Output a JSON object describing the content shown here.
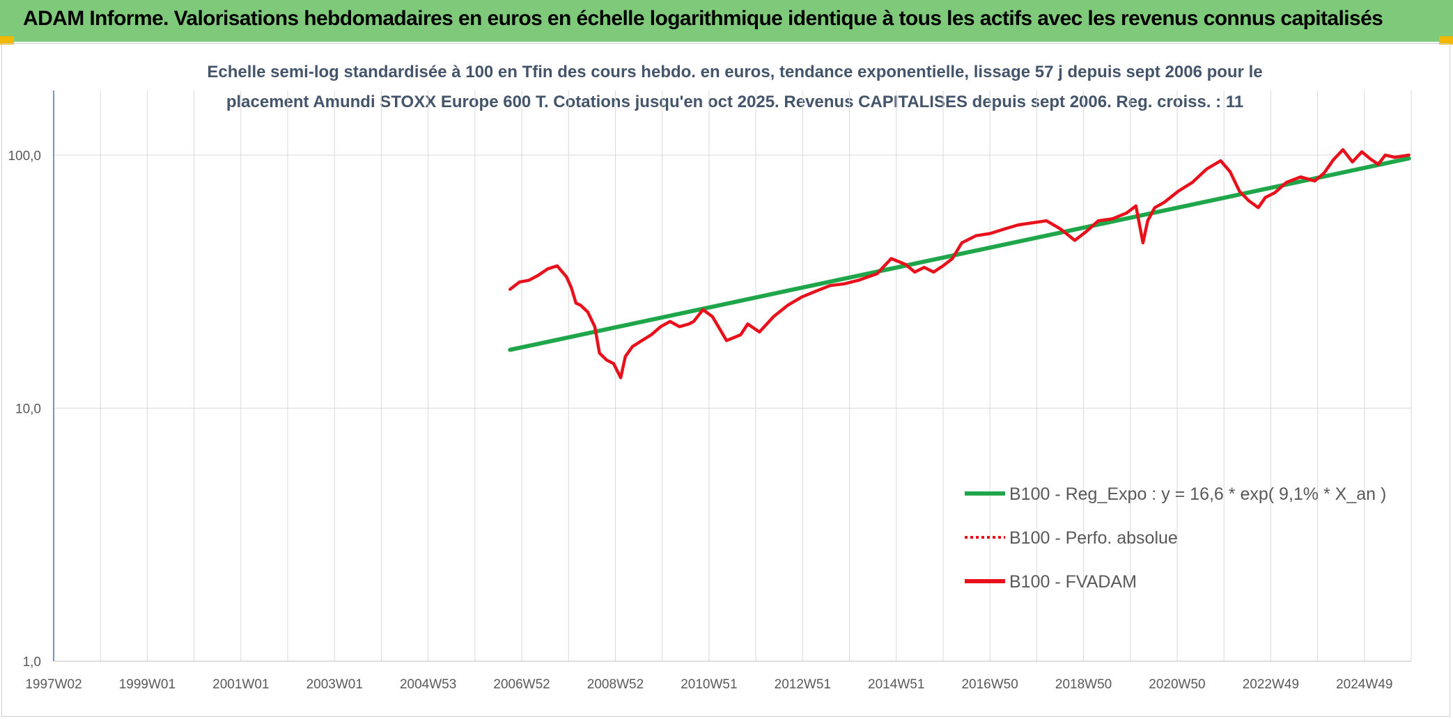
{
  "header": {
    "title": "ADAM Informe. Valorisations hebdomadaires en euros en échelle logarithmique identique à tous les actifs avec les revenus connus capitalisés"
  },
  "colors": {
    "banner": "#7fc97a",
    "regression": "#1fa64a",
    "series": "#e8101a",
    "axis": "#4472c4",
    "grid": "#d9d9d9",
    "subtitle": "#44546a"
  },
  "chart_data": {
    "type": "line",
    "title_line1": "Echelle semi-log standardisée à 100 en Tfin des cours hebdo. en euros, tendance exponentielle, lissage 57 j depuis sept 2006 pour le",
    "title_line2": "placement Amundi STOXX Europe 600 T. Cotations jusqu'en oct 2025. Revenus CAPITALISES depuis sept 2006. Reg. croiss. : 11",
    "y_scale": "log",
    "ylim": [
      1,
      180
    ],
    "y_ticks": [
      "100,0",
      "10,0",
      "1,0"
    ],
    "x_ticks": [
      "1997W02",
      "1999W01",
      "2001W01",
      "2003W01",
      "2004W53",
      "2006W52",
      "2008W52",
      "2010W51",
      "2012W51",
      "2014W51",
      "2016W50",
      "2018W50",
      "2020W50",
      "2022W49",
      "2024W49"
    ],
    "x_range": [
      1997.0,
      2025.85
    ],
    "grid": true,
    "legend_position": "bottom-right",
    "series": [
      {
        "name": "B100 - Reg_Expo : y = 16,6 * exp( 9,1% *  X_an )",
        "style": "solid",
        "color": "#1fa64a",
        "x": [
          2006.7,
          2025.8
        ],
        "y": [
          17.0,
          97.0
        ]
      },
      {
        "name": "B100 - Perfo. absolue",
        "style": "dotted",
        "color": "#e8101a",
        "x": [],
        "y": []
      },
      {
        "name": "B100 - FVADAM",
        "style": "solid",
        "color": "#e8101a",
        "x": [
          2006.7,
          2006.9,
          2007.1,
          2007.3,
          2007.5,
          2007.7,
          2007.9,
          2008.0,
          2008.1,
          2008.2,
          2008.35,
          2008.5,
          2008.6,
          2008.75,
          2008.9,
          2009.05,
          2009.15,
          2009.3,
          2009.5,
          2009.7,
          2009.9,
          2010.1,
          2010.3,
          2010.5,
          2010.6,
          2010.8,
          2011.0,
          2011.3,
          2011.6,
          2011.75,
          2012.0,
          2012.3,
          2012.6,
          2012.9,
          2013.2,
          2013.5,
          2013.8,
          2014.1,
          2014.5,
          2014.8,
          2015.1,
          2015.3,
          2015.5,
          2015.7,
          2015.9,
          2016.1,
          2016.3,
          2016.6,
          2016.9,
          2017.2,
          2017.5,
          2017.8,
          2018.1,
          2018.4,
          2018.7,
          2018.95,
          2019.2,
          2019.5,
          2019.8,
          2020.0,
          2020.15,
          2020.25,
          2020.4,
          2020.6,
          2020.9,
          2021.2,
          2021.5,
          2021.8,
          2022.0,
          2022.2,
          2022.4,
          2022.6,
          2022.75,
          2022.95,
          2023.2,
          2023.5,
          2023.8,
          2024.0,
          2024.2,
          2024.4,
          2024.6,
          2024.8,
          2025.0,
          2025.15,
          2025.3,
          2025.5,
          2025.8
        ],
        "y": [
          29.5,
          31.5,
          32.0,
          33.5,
          35.5,
          36.5,
          33.0,
          30.0,
          26.0,
          25.5,
          24.0,
          21.0,
          16.5,
          15.5,
          15.0,
          13.2,
          16.0,
          17.5,
          18.5,
          19.5,
          21.0,
          22.0,
          21.0,
          21.5,
          22.0,
          24.5,
          23.0,
          18.5,
          19.5,
          21.5,
          20.0,
          23.0,
          25.5,
          27.5,
          29.0,
          30.5,
          31.0,
          32.0,
          34.0,
          39.0,
          37.0,
          34.5,
          36.0,
          34.5,
          36.5,
          39.0,
          45.0,
          48.0,
          49.0,
          51.0,
          53.0,
          54.0,
          55.0,
          51.0,
          46.0,
          50.0,
          55.0,
          56.0,
          59.0,
          63.0,
          45.0,
          55.0,
          62.0,
          65.0,
          72.0,
          78.0,
          88.0,
          95.0,
          86.0,
          72.0,
          66.0,
          62.0,
          68.0,
          71.0,
          78.0,
          82.0,
          79.0,
          85.0,
          96.0,
          105.0,
          94.0,
          103.0,
          96.0,
          92.0,
          100.0,
          98.0,
          100.0
        ]
      }
    ]
  }
}
